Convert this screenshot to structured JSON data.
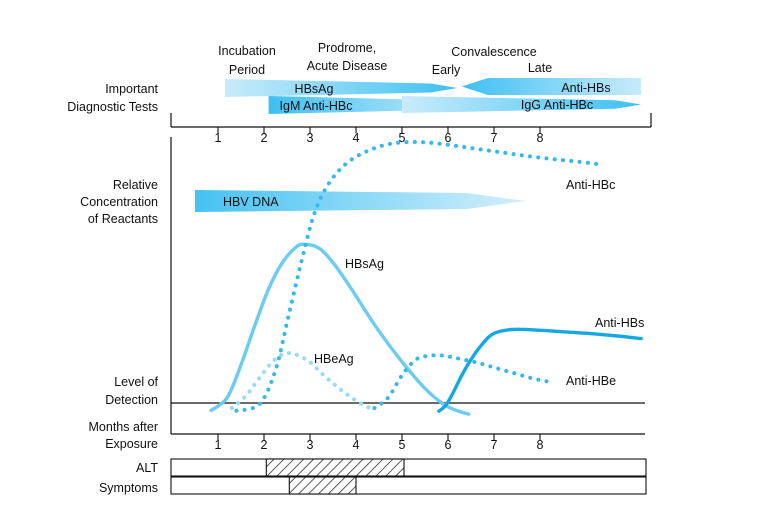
{
  "chart_data": {
    "type": "line",
    "title": "",
    "ylabel": "Relative Concentration of Reactants",
    "xlabel": "Months after Exposure",
    "x_ticks": [
      1,
      2,
      3,
      4,
      5,
      6,
      7,
      8
    ],
    "xlim": [
      0,
      10.2
    ],
    "colors": {
      "light_blue": "#6ccbf2",
      "dark_blue": "#13a8e3",
      "bar_light": "#c9ebfb",
      "bar_dark": "#3ec0f2"
    },
    "phases": [
      {
        "id": "incubation",
        "label_line1": "Incubation",
        "label_line2": "Period",
        "x_center": 1.6
      },
      {
        "id": "prodrome",
        "label_line1": "Prodrome,",
        "label_line2": "Acute Disease",
        "x_center": 3.65
      },
      {
        "id": "convalescence",
        "label_line1": "Convalescence",
        "x_center": 7.0
      },
      {
        "id": "early",
        "label_line1": "Early",
        "x_center": 5.8
      },
      {
        "id": "late",
        "label_line1": "Late",
        "x_center": 7.6
      }
    ],
    "row_labels": {
      "tests_line1": "Important",
      "tests_line2": "Diagnostic Tests",
      "conc_line1": "Relative",
      "conc_line2": "Concentration",
      "conc_line3": "of Reactants",
      "lod_line1": "Level of",
      "lod_line2": "Detection",
      "months_line1": "Months after",
      "months_line2": "Exposure",
      "alt": "ALT",
      "symptoms": "Symptoms"
    },
    "diagnostic_bars": [
      {
        "id": "hbsag-bar",
        "label": "HBsAg",
        "x_start": 1.15,
        "x_end": 6.2,
        "direction": "right"
      },
      {
        "id": "anti-hbs-bar",
        "label": "Anti-HBs",
        "x_start": 6.3,
        "x_end": 10.2,
        "direction": "left"
      },
      {
        "id": "igm-anti-hbc-bar",
        "label": "IgM Anti-HBc",
        "x_start": 2.1,
        "x_end": 6.5,
        "direction": "right"
      },
      {
        "id": "igg-anti-hbc-bar",
        "label": "IgG Anti-HBc",
        "x_start": 5.0,
        "x_end": 10.2,
        "direction": "left"
      }
    ],
    "hbv_dna": {
      "label": "HBV DNA",
      "x_start": 0.5,
      "x_end": 7.7
    },
    "series": [
      {
        "name": "HBsAg",
        "style": "solid",
        "color": "light",
        "x": [
          0.85,
          1.2,
          1.5,
          1.8,
          2.1,
          2.4,
          2.7,
          2.9,
          3.2,
          3.5,
          3.9,
          4.3,
          4.7,
          5.1,
          5.5,
          5.9,
          6.2,
          6.45
        ],
        "y": [
          0.6,
          5.5,
          18,
          33,
          47,
          57,
          63,
          64,
          62.5,
          57,
          47,
          36,
          26,
          17,
          9,
          3,
          0.5,
          -0.8
        ]
      },
      {
        "name": "Anti-HBc",
        "style": "dotted",
        "color": "light",
        "x": [
          1.4,
          1.9,
          2.25,
          2.55,
          2.85,
          3.1,
          3.4,
          3.8,
          4.3,
          4.8,
          5.4,
          6.0,
          6.6,
          7.2,
          7.8,
          8.4,
          9.0,
          9.3
        ],
        "y": [
          0.5,
          3,
          16,
          38,
          60,
          76,
          87,
          95,
          100,
          102.5,
          103,
          102,
          100.5,
          99,
          97.5,
          96.3,
          95.2,
          94.5
        ]
      },
      {
        "name": "HBeAg",
        "style": "dotted",
        "color": "pale",
        "x": [
          1.3,
          1.6,
          1.9,
          2.15,
          2.35,
          2.55,
          2.75,
          3.0,
          3.3,
          3.6,
          3.9,
          4.2,
          4.4
        ],
        "y": [
          1.5,
          6,
          13,
          18.5,
          21.5,
          22.5,
          21.5,
          19,
          14,
          9.5,
          5.5,
          2.3,
          1
        ]
      },
      {
        "name": "Anti-HBe",
        "style": "dotted",
        "color": "light",
        "x": [
          4.4,
          4.7,
          5.0,
          5.3,
          5.6,
          5.9,
          6.2,
          6.6,
          7.0,
          7.4,
          7.8,
          8.2
        ],
        "y": [
          1.5,
          5.5,
          14,
          20,
          21.5,
          21.5,
          20.5,
          19,
          17,
          15,
          13,
          11.5
        ]
      },
      {
        "name": "Anti-HBs",
        "style": "solid",
        "color": "dark",
        "x": [
          5.8,
          5.95,
          6.1,
          6.3,
          6.5,
          6.75,
          7.0,
          7.4,
          8.0,
          8.6,
          9.2,
          9.8,
          10.2
        ],
        "y": [
          0.3,
          2.5,
          7,
          14,
          20,
          26,
          30,
          31.5,
          31.2,
          30.5,
          29.8,
          28.8,
          28
        ]
      }
    ],
    "curve_labels": [
      {
        "series": "Anti-HBc",
        "text": "Anti-HBc"
      },
      {
        "series": "HBsAg",
        "text": "HBsAg"
      },
      {
        "series": "HBeAg",
        "text": "HBeAg"
      },
      {
        "series": "Anti-HBs",
        "text": "Anti-HBs"
      },
      {
        "series": "Anti-HBe",
        "text": "Anti-HBe"
      }
    ],
    "alt_range": [
      2.05,
      5.0
    ],
    "symptoms_range": [
      2.55,
      4.0
    ]
  }
}
